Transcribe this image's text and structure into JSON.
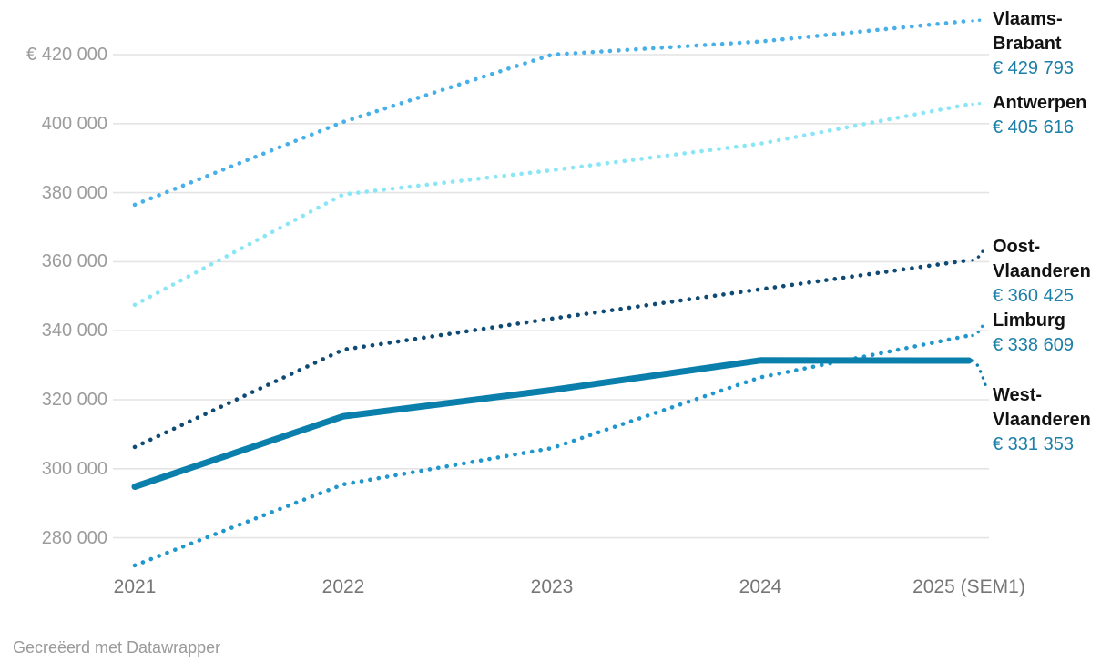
{
  "footer": {
    "credit": "Gecreëerd met Datawrapper"
  },
  "chart_data": {
    "type": "line",
    "title": "",
    "x": [
      "2021",
      "2022",
      "2023",
      "2024",
      "2025 (SEM1)"
    ],
    "y_ticks": [
      "€ 420 000",
      "400 000",
      "380 000",
      "360 000",
      "340 000",
      "320 000",
      "300 000",
      "280 000"
    ],
    "y_tick_values": [
      420000,
      400000,
      380000,
      360000,
      340000,
      320000,
      300000,
      280000
    ],
    "ylim": [
      268000,
      434000
    ],
    "grid": true,
    "legend_position": "right-edge-labels",
    "value_color": "#1b7fa8",
    "grid_color": "#e4e4e4",
    "series": [
      {
        "name": "Vlaams-Brabant",
        "final_label": "€ 429 793",
        "color": "#47b0e8",
        "style": "dotted",
        "values": [
          376500,
          400500,
          420000,
          423800,
          429793
        ]
      },
      {
        "name": "Antwerpen",
        "final_label": "€ 405 616",
        "color": "#8ae6f5",
        "style": "dotted",
        "values": [
          347500,
          379500,
          386500,
          394200,
          405616
        ]
      },
      {
        "name": "Oost-Vlaanderen",
        "final_label": "€ 360 425",
        "color": "#0e4a73",
        "style": "dotted",
        "values": [
          306300,
          334500,
          343500,
          352000,
          360425
        ]
      },
      {
        "name": "Limburg",
        "final_label": "€ 338 609",
        "color": "#1f96cc",
        "style": "dotted",
        "values": [
          272000,
          295500,
          306000,
          326500,
          338609
        ]
      },
      {
        "name": "West-Vlaanderen",
        "final_label": "€ 331 353",
        "color": "#0b7fac",
        "style": "solid",
        "values": [
          294800,
          315200,
          322800,
          331400,
          331353
        ]
      }
    ]
  }
}
